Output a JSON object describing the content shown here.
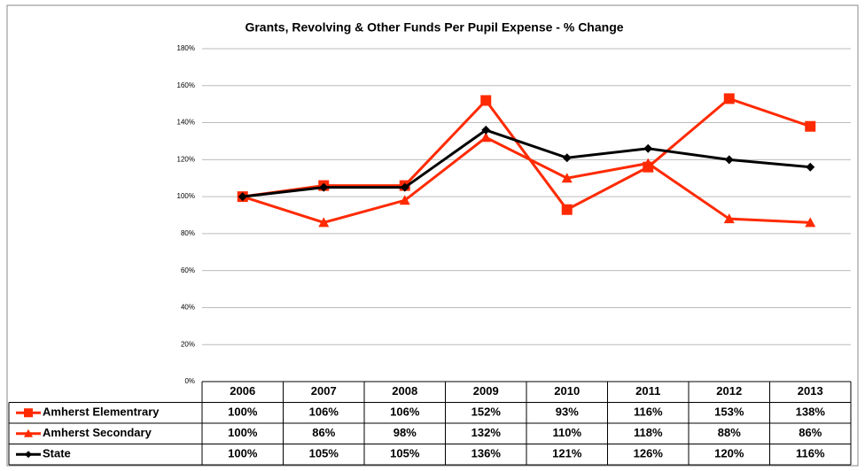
{
  "chart_data": {
    "type": "line",
    "title": "Grants, Revolving & Other Funds Per Pupil Expense - % Change",
    "categories": [
      "2006",
      "2007",
      "2008",
      "2009",
      "2010",
      "2011",
      "2012",
      "2013"
    ],
    "ylim": [
      0,
      180
    ],
    "yticks": [
      {
        "value": 0,
        "label": "0%"
      },
      {
        "value": 20,
        "label": "20%"
      },
      {
        "value": 40,
        "label": "40%"
      },
      {
        "value": 60,
        "label": "60%"
      },
      {
        "value": 80,
        "label": "80%"
      },
      {
        "value": 100,
        "label": "100%"
      },
      {
        "value": 120,
        "label": "120%"
      },
      {
        "value": 140,
        "label": "140%"
      },
      {
        "value": 160,
        "label": "160%"
      },
      {
        "value": 180,
        "label": "180%"
      }
    ],
    "grid": true,
    "series": [
      {
        "name": "Amherst Elementrary",
        "color": "#ff2a00",
        "marker": "square",
        "values": [
          100,
          106,
          106,
          152,
          93,
          116,
          153,
          138
        ],
        "value_labels": [
          "100%",
          "106%",
          "106%",
          "152%",
          "93%",
          "116%",
          "153%",
          "138%"
        ]
      },
      {
        "name": "Amherst Secondary",
        "color": "#ff2a00",
        "marker": "triangle",
        "values": [
          100,
          86,
          98,
          132,
          110,
          118,
          88,
          86
        ],
        "value_labels": [
          "100%",
          "86%",
          "98%",
          "132%",
          "110%",
          "118%",
          "88%",
          "86%"
        ]
      },
      {
        "name": "State",
        "color": "#000000",
        "marker": "diamond",
        "values": [
          100,
          105,
          105,
          136,
          121,
          126,
          120,
          116
        ],
        "value_labels": [
          "100%",
          "105%",
          "105%",
          "136%",
          "121%",
          "126%",
          "120%",
          "116%"
        ]
      }
    ]
  }
}
